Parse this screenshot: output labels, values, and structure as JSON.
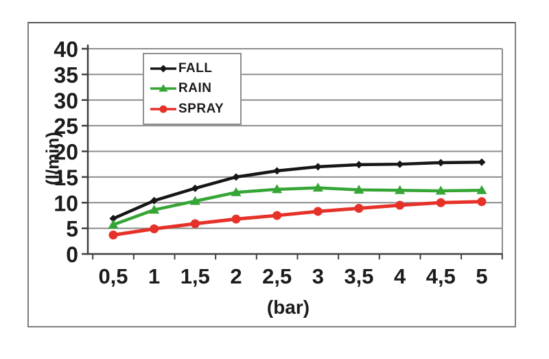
{
  "chart_data": {
    "type": "line",
    "title": "",
    "xlabel": "(bar)",
    "ylabel": "(l/min)",
    "x": [
      0.5,
      1,
      1.5,
      2,
      2.5,
      3,
      3.5,
      4,
      4.5,
      5
    ],
    "x_tick_labels": [
      "0,5",
      "1",
      "1,5",
      "2",
      "2,5",
      "3",
      "3,5",
      "4",
      "4,5",
      "5"
    ],
    "ylim": [
      0,
      40
    ],
    "y_tick_step": 5,
    "y_tick_labels": [
      "0",
      "5",
      "10",
      "15",
      "20",
      "25",
      "30",
      "35",
      "40"
    ],
    "grid": true,
    "legend_position": "top-left-inside",
    "series": [
      {
        "name": "FALL",
        "color": "#161616",
        "marker": "diamond",
        "values": [
          6.9,
          10.4,
          12.8,
          15.0,
          16.2,
          17.0,
          17.4,
          17.5,
          17.8,
          17.9
        ]
      },
      {
        "name": "RAIN",
        "color": "#35a535",
        "marker": "triangle",
        "values": [
          5.7,
          8.6,
          10.3,
          12.0,
          12.6,
          12.9,
          12.5,
          12.4,
          12.3,
          12.4
        ]
      },
      {
        "name": "SPRAY",
        "color": "#e63129",
        "marker": "circle",
        "values": [
          3.7,
          4.9,
          5.9,
          6.8,
          7.5,
          8.3,
          8.9,
          9.5,
          10.0,
          10.2
        ]
      }
    ],
    "colors": {
      "gridline": "#8c8c8c",
      "axis": "#3f3f3f",
      "text": "#1c1c1c",
      "plot_background": "#ffffff",
      "frame_border": "#7d7d7d"
    }
  }
}
